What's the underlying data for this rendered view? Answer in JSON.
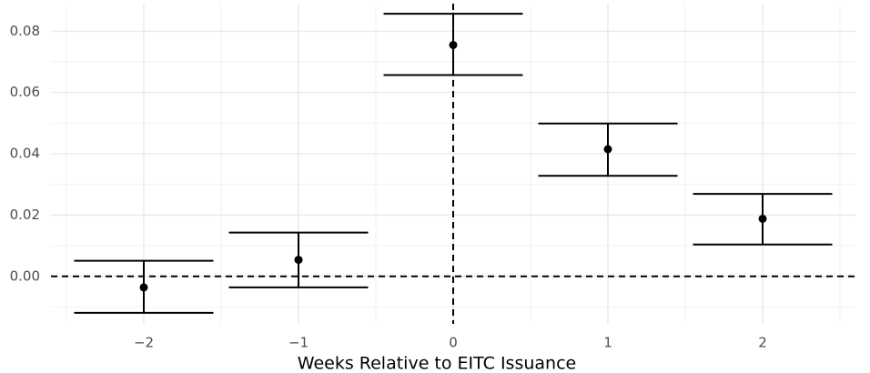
{
  "chart_data": {
    "type": "errorbar",
    "x_label": "Weeks Relative to EITC Issuance",
    "x": [
      -2,
      -1,
      0,
      1,
      2
    ],
    "values": [
      -0.0036,
      0.0054,
      0.0755,
      0.0415,
      0.0188
    ],
    "lower": [
      -0.0119,
      -0.0036,
      0.0657,
      0.0328,
      0.0104
    ],
    "upper": [
      0.0051,
      0.0143,
      0.0857,
      0.0499,
      0.0269
    ],
    "color": "#000000",
    "xlim": [
      -2.6,
      2.6
    ],
    "xticks": [
      {
        "value": -2,
        "label": "−2"
      },
      {
        "value": -1,
        "label": "−1"
      },
      0,
      1,
      2
    ],
    "ylim": [
      -0.0155,
      0.089
    ],
    "yticks": [
      {
        "value": 0,
        "label": "0.00"
      },
      0.02,
      0.04,
      0.06,
      0.08
    ],
    "hline": 0,
    "vline": 0,
    "grid": true
  }
}
